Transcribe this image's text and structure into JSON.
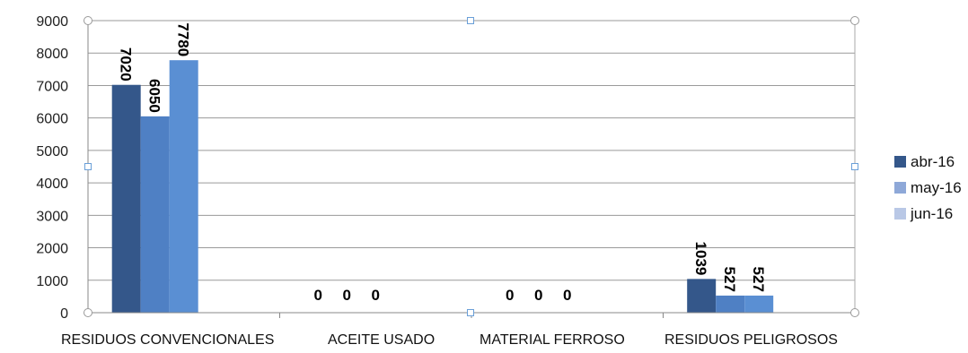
{
  "chart_data": {
    "type": "bar",
    "categories": [
      "RESIDUOS CONVENCIONALES",
      "ACEITE USADO",
      "MATERIAL FERROSO",
      "RESIDUOS PELIGROSOS"
    ],
    "series": [
      {
        "name": "abr-16",
        "values": [
          7020,
          0,
          0,
          1039
        ],
        "color": "#34578a"
      },
      {
        "name": "may-16",
        "values": [
          6050,
          0,
          0,
          527
        ],
        "color": "#4f80c4"
      },
      {
        "name": "jun-16",
        "values": [
          7780,
          0,
          0,
          527
        ],
        "color": "#5a8fd3"
      }
    ],
    "data_labels": [
      [
        "7020",
        "0",
        "0",
        "1039"
      ],
      [
        "6050",
        "0",
        "0",
        "527"
      ],
      [
        "7780",
        "0",
        "0",
        "527"
      ]
    ],
    "legend_swatch_colors": [
      "#34578a",
      "#8ea8d8",
      "#b9c8e6"
    ],
    "yticks": [
      0,
      1000,
      2000,
      3000,
      4000,
      5000,
      6000,
      7000,
      8000,
      9000
    ],
    "ylim": [
      0,
      9000
    ],
    "grid": true,
    "legend_position": "right"
  }
}
